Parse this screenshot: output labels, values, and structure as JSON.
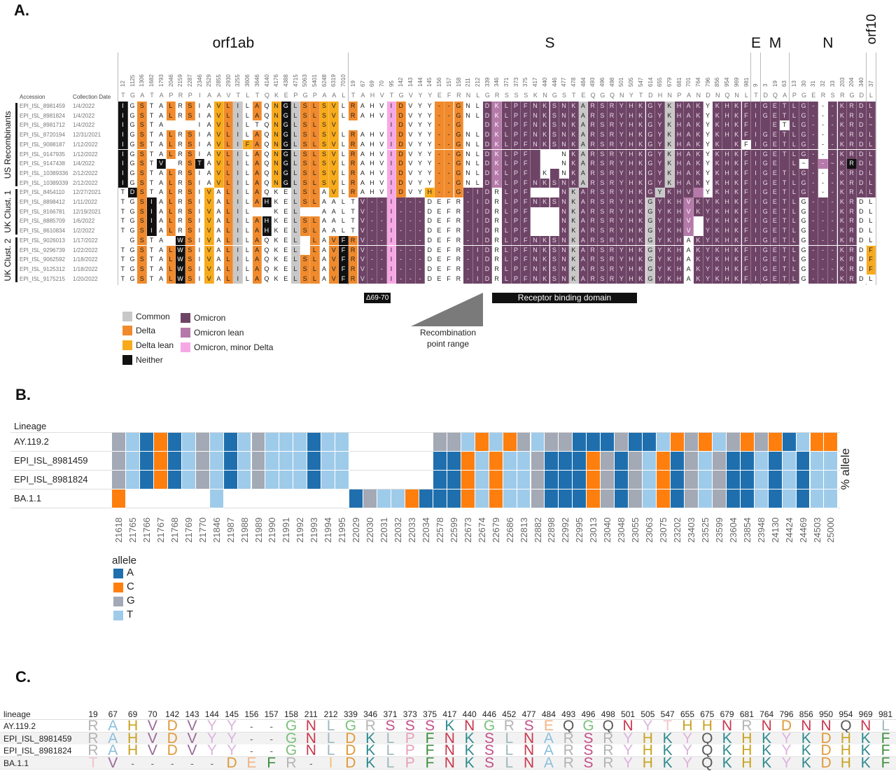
{
  "panels": {
    "a": "A.",
    "b": "B.",
    "c": "C."
  },
  "panel_a": {
    "genes": [
      {
        "name": "orf1ab",
        "positions": [
          "12",
          "1125",
          "1306",
          "1682",
          "1793",
          "2046",
          "2159",
          "2287",
          "2346",
          "2529",
          "2855",
          "2930",
          "3255",
          "3606",
          "3646",
          "4140",
          "4176",
          "4388",
          "4715",
          "5063",
          "5401",
          "6248",
          "6319",
          "7010"
        ]
      },
      {
        "name": "S",
        "positions": [
          "19",
          "67",
          "69",
          "70",
          "95",
          "142",
          "143",
          "144",
          "145",
          "156",
          "157",
          "158",
          "211",
          "212",
          "339",
          "346",
          "371",
          "373",
          "375",
          "417",
          "440",
          "446",
          "477",
          "478",
          "484",
          "493",
          "496",
          "498",
          "501",
          "505",
          "547",
          "614",
          "655",
          "679",
          "681",
          "701",
          "764",
          "796",
          "856",
          "954",
          "969",
          "981"
        ]
      },
      {
        "name": "E",
        "positions": [
          "9"
        ]
      },
      {
        "name": "M",
        "positions": [
          "3",
          "19",
          "63"
        ]
      },
      {
        "name": "N",
        "positions": [
          "13",
          "30",
          "31",
          "32",
          "33",
          "203",
          "204",
          "340"
        ]
      },
      {
        "name": "orf10",
        "positions": [
          "37"
        ]
      }
    ],
    "reference": "TGATAPRPIAAVTLTQKEPGPAAL",
    "reference_s": "TAHVTGVYYEFRNLGRSSSKNGSTEQGQNYTDHNPANDNQNL",
    "reference_tail": "TDQAPGERSRGDL",
    "col_headers": {
      "accession": "Accession",
      "date": "Collection Date"
    },
    "groups": [
      {
        "label": "US Recombinants",
        "rows": 9
      },
      {
        "label": "UK Clust. 1",
        "rows": 5
      },
      {
        "label": "UK Clust. 2",
        "rows": 5
      }
    ],
    "rows": [
      {
        "accession": "EPI_ISL_8981459",
        "date": "1/4/2022",
        "res": [
          "IGSTALRSIAVLILAQNGLSLSVL",
          "RAHVIDVYY--GNLDKLPFNKSNKARSRYHKGYKHAKYKHKF",
          "IGETLG---KRDL"
        ],
        "col": [
          "nwdwwdwdwwldcwdwlncddllw",
          "dwwwpdwwwdddwwomoooooooocoooooooocooowoooooo",
          "ooooowoooooww"
        ]
      },
      {
        "accession": "EPI_ISL_8981824",
        "date": "1/4/2022",
        "res": [
          "IGSTALRSIAVLILAQNGLSLSVL",
          "RAHVIDVYY--GNLDKLPFNKSNKARSRYHKGYKHAKYKHKF",
          "IGETLG---KRDL"
        ],
        "col": [
          "nwdwwdwdwwldcwdwlncddllw",
          "dwwwpdwwwdddwwomoooooooocoooooooocooowoooooo",
          "ooooowoooooww"
        ]
      },
      {
        "accession": "EPI_ISL_8981712",
        "date": "1/4/2022",
        "res": [
          "IGSTA   IAVLILTQNGLSLSV ",
          "    IDVYY--G  DKLPFNKSNKARSRYHKGYKHAKYKHKF",
          "I ETLG---KRD~"
        ],
        "col": [
          "nwdwwxxxwwldcwwwlncddllx",
          "xxxxpdwwwdddxxomoooooooocoooooooocooowoooooo",
          "oxooowooooown"
        ]
      },
      {
        "accession": "EPI_ISL_8720194",
        "date": "12/31/2021",
        "res": [
          "IGSTALRSIAVLILAQNGLSLSVL",
          "RAHVIDVYY--GNLDKLPFNKSNKARSRYHKGYKHAKYKHKF",
          "IGETLG---KRDL"
        ],
        "col": [
          "nwdwwdwdwwldcwdwlncddllw",
          "dwwwpdwwwdddwwomoooooooocoooooooocooowoooooo",
          "ooooowoooooww"
        ]
      },
      {
        "accession": "EPI_ISL_9088187",
        "date": "1/12/2022",
        "res": [
          "IGSTALRSIAVLIFAQNGLSLSVL",
          "RAHVIDVYY--GNLDKLPFNKSNKARSRYHKGYKHAKYK KF",
          "IGETLG---KRDL"
        ],
        "col": [
          "nwdwwdwdwwldcldwlncddllw",
          "dwwwpdwwwdddwwomoooooooocoooooooocooowoooxoo",
          "ooooowoooooww"
        ]
      },
      {
        "accession": "EPI_ISL_9147935",
        "date": "1/12/2022",
        "res": [
          "IGSTALRSIAVLILAQNGLSLSVL",
          "RAHVIDVYY--GNLDKLPF   NKARSRYHKGYKHAKYKHKF",
          "IGETLG---KRDL"
        ],
        "col": [
          "nwdwwdwdwwldcwdwlncddllw",
          "dwwwpdwwwdddwwomooooxxxocoooooooocooowoooooo",
          "ooooowoooooww"
        ]
      },
      {
        "accession": "EPI_ISL_9147438",
        "date": "1/4/2022",
        "res": [
          "IGSTV RSTAVLILAQNGLSLSVL",
          "RAHVIDVYY--GNLDKLPF   NKARSRYHKGYKHAKYKHKF",
          "IGE L~--~KRDL"
        ],
        "col": [
          "nwdwnxwdnwldcwdwlncddllw",
          "dwwwpdwwwdddwwomooooxxxocoooooooocooowoooooo",
          "oooxomoonooww"
        ]
      },
      {
        "accession": "EPI_ISL_10389336",
        "date": "2/12/2022",
        "res": [
          "IGSTALRSIAVLILAQNGLSLSVL",
          "RAHVIDVYY--GNLDKLPF K NKARSRYHKGYKHAKYKHKF",
          "IGETLG---KRDL"
        ],
        "col": [
          "nwdwwdwdwwldcwdwlncddllw",
          "dwwwpdwwwdddwwomooooxoxocoooooooocooowoooooo",
          "ooooowoooooww"
        ]
      },
      {
        "accession": "EPI_ISL_10389339",
        "date": "2/12/2022",
        "res": [
          "IGSTALRSIAVLILAQNGLSLSVL",
          "RAHVIDVYY--GNLDKLPFNKSNKARSRYHKGYKHAKYKHKF",
          "IGETLG---KRDL"
        ],
        "col": [
          "nwdwwdwdwwldcwdwlncddllw",
          "dwwwpdwwwdddwwomoooooooocoooooooocooowoooooo",
          "ooooowoooooww"
        ]
      },
      {
        "accession": "EPI_ISL_8454110",
        "date": "12/27/2021",
        "res": [
          "TDSTALRSIVALILAQKELSLAVL",
          "RAHVIDVYH--G-IDRLPF   NKARSRYHKGYKHV YKHKF",
          "IGETLG---KRAL"
        ],
        "col": [
          "wndwwdwdwlwdcwdwwwcddwlw",
          "dwwwpdwwldddooowoooxxxocoooooooocooomxoooooo",
          "ooooowooooonw"
        ]
      },
      {
        "accession": "EPI_ISL_8898412",
        "date": "1/11/2022",
        "res": [
          "TGSIALRSIVALILAHKELSLAAL",
          "TV--I---DEFR-IDRLPFNKSNKARSRYHKGYKHVKYKHKF",
          "IGETLG---KRDL"
        ],
        "col": [
          "wwdnwdwdwlwdcwdnwwcddwww",
          "wooopoooww wwooowoooo ooocoooooo ocooomoooo oo",
          "ooooowoooooww"
        ]
      },
      {
        "accession": "EPI_ISL_8166781",
        "date": "12/19/2021",
        "res": [
          "TGSIALRSIVALIL  KEL  AAL",
          "TV--I---DEFR-IDRLPF   NKARSRYHKGYKHVKYKHKF",
          "IGETLG---KRDL"
        ],
        "col": [
          "wwdnwdwdwlwdcwxxwwcxxwww",
          "wooopoooww wwooowooox xxocoooooo ocooomoooo oo",
          "ooooowoooooww"
        ]
      },
      {
        "accession": "EPI_ISL_8885709",
        "date": "1/6/2022",
        "res": [
          "TGSIALRSIVALILAHKELSLAAL",
          "TV--I---DEFR-IDRLPF   NKARSRYHKGYKHV YKHKF",
          "IGETLG---KRDL"
        ],
        "col": [
          "wwdnwdwdwlwdcwdnwwcddwww",
          "wooopoooww wwooowooox xxocoooooo ocooomxooo oo",
          "ooooowoooooww"
        ]
      },
      {
        "accession": "EPI_ISL_8610834",
        "date": "1/2/2022",
        "res": [
          "TGSIALRSIVALILAHKELSLAAL",
          "TV--I---DEFR-IDRLPF   NKARSRYHKGYKHV YKHKF",
          "IGETLG---KRDL"
        ],
        "col": [
          "wwdnwdwdwlwdcwdnwwcddwww",
          "wooopoooww wwooowooox xxocoooooo ocooomxooo oo",
          "ooooowoooooww"
        ]
      },
      {
        "accession": "EPI_ISL_9026013",
        "date": "1/17/2022",
        "res": [
          " GSTA WSIVALILAQKEL LAVF",
          "RV--I---DEFR-IDRLPFNKSNKARSRYHKGYKHAKYKHKF",
          "IGETLG---KRDL"
        ],
        "col": [
          "xwdwwxndwlwdcwdwwwcxdwdn",
          "dooopoooww wwooowoooo ooocoooooo ocooowoooo oo",
          "ooooowoooooww"
        ]
      },
      {
        "accession": "EPI_ISL_9296739",
        "date": "1/22/2022",
        "res": [
          "TGSTALWSIVALILAQKEL LAVF",
          "RV--I---DEFR-IDRLPFNKSNKARSRYHKGYKHAKYKHKF",
          "IGETLG---KRDF"
        ],
        "col": [
          "wwdwwdndwlwdcwdwwwcxdwdn",
          "dooopoooww wwooowoooo ooocoooooo ocooowoooo oo",
          "ooooowooooowl"
        ]
      },
      {
        "accession": "EPI_ISL_9062592",
        "date": "1/18/2022",
        "res": [
          "TGSTALWSIVALILAQKELSLAVF",
          "RV--I---DEFR-IDRLPFNKSNKARSRYHKGYKHAKYKHKF",
          "IGETLG---KRDF"
        ],
        "col": [
          "wwdwwdndwlwdcwdwwwcddwdn",
          "dooopoooww wwooowoooo ooocoooooo ocooowoooo oo",
          "ooooowooooowl"
        ]
      },
      {
        "accession": "EPI_ISL_9125312",
        "date": "1/18/2022",
        "res": [
          "TGSTALWSIVALILAQKELSLAVF",
          "RV--I---DEFR-IDRLPFNKSNKARSRYHKGYKHAKYKHKF",
          "IGETLG---KRDF"
        ],
        "col": [
          "wwdwwdndwlwdcwdwwwcddwdn",
          "dooopoooww wwooowoooo ooocoooooo ocooowoooo oo",
          "ooooowooooowl"
        ]
      },
      {
        "accession": "EPI_ISL_9175215",
        "date": "1/20/2022",
        "res": [
          "TGSTALWSIVALILAQKELSLAVF",
          "RV--I---DEFR-IDRLPFNKSNKARSRYHKGYKHAKYKHKF",
          "IGETLG---KRDL"
        ],
        "col": [
          "wwdwwdndwlwdcwdwwwcddwdn",
          "dooopoooww wwooowoooo ooocoooooo ocooowoooo oo",
          "ooooowoooooww"
        ]
      }
    ],
    "annotations": {
      "deletion": "Δ69-70",
      "rbd": "Receptor binding domain",
      "recombination": [
        "Recombination",
        "point range"
      ]
    },
    "category_colors": {
      "c": "#c8c8c8",
      "d": "#f08a2c",
      "l": "#f7aa1c",
      "n": "#111111",
      "o": "#6e4466",
      "m": "#b57aa9",
      "p": "#f6a8e4",
      "w": "#ffffff",
      "x": "#ffffff"
    },
    "legend": [
      {
        "key": "c",
        "label": "Common"
      },
      {
        "key": "d",
        "label": "Delta"
      },
      {
        "key": "l",
        "label": "Delta lean"
      },
      {
        "key": "n",
        "label": "Neither"
      },
      {
        "key": "o",
        "label": "Omicron"
      },
      {
        "key": "m",
        "label": "Omicron lean"
      },
      {
        "key": "p",
        "label": "Omicron, minor Delta"
      }
    ]
  },
  "chart_data": {
    "type": "heatmap",
    "row_header": "Lineage",
    "side_label": "% allele",
    "legend_title": "allele",
    "legend": [
      "A",
      "C",
      "G",
      "T"
    ],
    "allele_colors": {
      "A": "#1f6fae",
      "C": "#ff7f0e",
      "G": "#a3a9b5",
      "T": "#9fcbea"
    },
    "positions": [
      "21618",
      "21765",
      "21766",
      "21767",
      "21768",
      "21769",
      "21770",
      "21846",
      "21987",
      "21988",
      "21989",
      "21990",
      "21991",
      "21992",
      "21993",
      "21994",
      "21995",
      "22029",
      "22030",
      "22031",
      "22032",
      "22033",
      "22034",
      "22578",
      "22599",
      "22673",
      "22674",
      "22679",
      "22686",
      "22813",
      "22882",
      "22898",
      "22992",
      "22995",
      "23013",
      "23040",
      "23048",
      "23055",
      "23063",
      "23075",
      "23202",
      "23403",
      "23525",
      "23599",
      "23604",
      "23854",
      "23948",
      "24130",
      "24424",
      "24469",
      "24503",
      "25000"
    ],
    "rows": [
      {
        "lineage": "AY.119.2",
        "alleles": "GTACATGTATGTTTATT------GGTCTCGTGGAAAGAATCGCTGCGCATCC"
      },
      {
        "lineage": "EPI_ISL_8981459",
        "alleles": "GTACATGTATGTTTATT------AACTCTTGAAACGAGTCAGTGAATATATT"
      },
      {
        "lineage": "EPI_ISL_8981824",
        "alleles": "GTACATGTATGTTTATT------AACTCTTGAAACGAGTCAGTGAATATATT"
      },
      {
        "lineage": "BA.1.1",
        "alleles": "C------T---------AGTTCAAACTCTTGAAACGAGTCAGTGAATATATT"
      }
    ]
  },
  "panel_c": {
    "header": "lineage",
    "positions": [
      "19",
      "67",
      "69",
      "70",
      "142",
      "143",
      "144",
      "145",
      "156",
      "157",
      "158",
      "211",
      "212",
      "339",
      "346",
      "371",
      "373",
      "375",
      "417",
      "440",
      "446",
      "452",
      "477",
      "484",
      "493",
      "496",
      "498",
      "501",
      "505",
      "547",
      "655",
      "675",
      "679",
      "681",
      "764",
      "796",
      "856",
      "950",
      "954",
      "969",
      "981"
    ],
    "rows": [
      {
        "lineage": "AY.119.2",
        "seq": "RAHVDVYY--GNLGRSSSKNGRSEQGQNYTHHNRNDNNQNL"
      },
      {
        "lineage": "EPI_ISL_8981459",
        "seq": "RAHVDVYY--GNLDKLPFNKSLNARSRYHKYQKHKYKDHKF"
      },
      {
        "lineage": "EPI_ISL_8981824",
        "seq": "RAHVDVYY--GNLDKLPFNKSLNARSRYHKYQKHKYKDHKF"
      },
      {
        "lineage": "BA.1.1",
        "seq": "TV-----DEFR-IDKLPFNKSLNARSRYHKYQKHKYKDHKF"
      }
    ],
    "residue_colors": {
      "R": "#b4b4b4",
      "A": "#8cc0dc",
      "H": "#c8a21e",
      "V": "#9a6a98",
      "D": "#e09a3a",
      "Y": "#dcb4dc",
      "G": "#7cc07c",
      "N": "#c8384e",
      "L": "#9fb8bc",
      "K": "#2f8a8e",
      "S": "#c4508a",
      "P": "#e8a0b8",
      "F": "#3f8f3f",
      "E": "#f2b486",
      "Q": "#5a5a5a",
      "T": "#f2c4cc",
      "I": "#f2c070",
      "-": "#666666"
    }
  }
}
